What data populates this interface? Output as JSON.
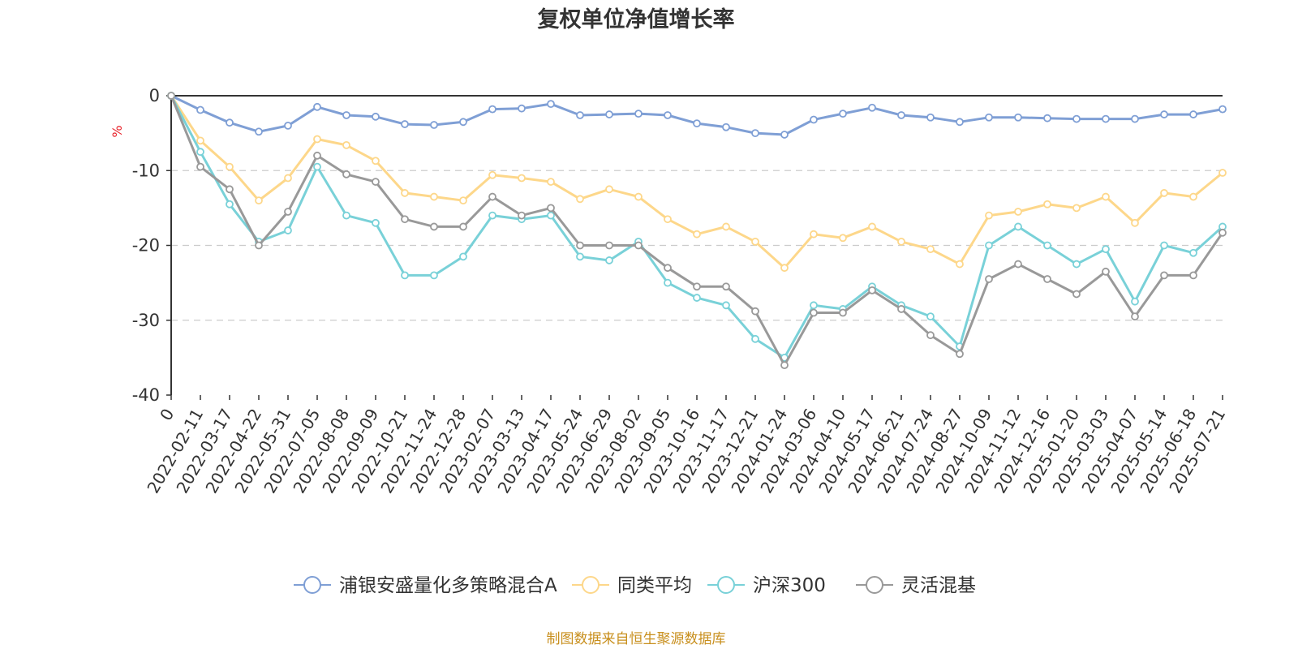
{
  "chart_data": {
    "type": "line",
    "title": "复权单位净值增长率",
    "ylabel": "%",
    "ylim": [
      -40,
      0
    ],
    "yticks": [
      0,
      -10,
      -20,
      -30,
      -40
    ],
    "grid": true,
    "legend_position": "bottom",
    "x": [
      "0",
      "2022-02-11",
      "2022-03-17",
      "2022-04-22",
      "2022-05-31",
      "2022-07-05",
      "2022-08-08",
      "2022-09-09",
      "2022-10-21",
      "2022-11-24",
      "2022-12-28",
      "2023-02-07",
      "2023-03-13",
      "2023-04-17",
      "2023-05-24",
      "2023-06-29",
      "2023-08-02",
      "2023-09-05",
      "2023-10-16",
      "2023-11-17",
      "2023-12-21",
      "2024-01-24",
      "2024-03-06",
      "2024-04-10",
      "2024-05-17",
      "2024-06-21",
      "2024-07-24",
      "2024-08-27",
      "2024-10-09",
      "2024-11-12",
      "2024-12-16",
      "2025-01-20",
      "2025-03-03",
      "2025-04-07",
      "2025-05-14",
      "2025-06-18",
      "2025-07-21"
    ],
    "series": [
      {
        "name": "浦银安盛量化多策略混合A",
        "color": "#7f9fd5",
        "values": [
          0,
          -1.9,
          -3.6,
          -4.8,
          -4.0,
          -1.5,
          -2.6,
          -2.8,
          -3.8,
          -3.9,
          -3.5,
          -1.8,
          -1.7,
          -1.1,
          -2.6,
          -2.5,
          -2.4,
          -2.6,
          -3.7,
          -4.2,
          -5.0,
          -5.2,
          -3.2,
          -2.4,
          -1.6,
          -2.6,
          -2.9,
          -3.5,
          -2.9,
          -2.9,
          -3.0,
          -3.1,
          -3.1,
          -3.1,
          -2.5,
          -2.5,
          -1.8
        ]
      },
      {
        "name": "同类平均",
        "color": "#fdd78a",
        "values": [
          0,
          -6.0,
          -9.5,
          -14.0,
          -11.0,
          -5.8,
          -6.6,
          -8.7,
          -13.0,
          -13.5,
          -14.0,
          -10.6,
          -11.0,
          -11.5,
          -13.8,
          -12.5,
          -13.5,
          -16.5,
          -18.5,
          -17.5,
          -19.5,
          -23.0,
          -18.5,
          -19.0,
          -17.5,
          -19.5,
          -20.5,
          -22.5,
          -16.0,
          -15.5,
          -14.5,
          -15.0,
          -13.5,
          -17.0,
          -13.0,
          -13.5,
          -10.3
        ]
      },
      {
        "name": "沪深300",
        "color": "#79d1d8",
        "values": [
          0,
          -7.5,
          -14.5,
          -19.5,
          -18.0,
          -9.5,
          -16.0,
          -17.0,
          -24.0,
          -24.0,
          -21.5,
          -16.0,
          -16.5,
          -16.0,
          -21.5,
          -22.0,
          -19.5,
          -25.0,
          -27.0,
          -28.0,
          -32.5,
          -35.0,
          -28.0,
          -28.5,
          -25.5,
          -28.0,
          -29.5,
          -33.5,
          -20.0,
          -17.5,
          -20.0,
          -22.5,
          -20.5,
          -27.5,
          -20.0,
          -21.0,
          -17.5
        ]
      },
      {
        "name": "灵活混基",
        "color": "#999999",
        "values": [
          0,
          -9.5,
          -12.5,
          -20.0,
          -15.5,
          -8.0,
          -10.5,
          -11.5,
          -16.5,
          -17.5,
          -17.5,
          -13.5,
          -16.0,
          -15.0,
          -20.0,
          -20.0,
          -20.0,
          -23.0,
          -25.5,
          -25.5,
          -28.8,
          -36.0,
          -29.0,
          -29.0,
          -26.0,
          -28.5,
          -32.0,
          -34.5,
          -24.5,
          -22.5,
          -24.5,
          -26.5,
          -23.5,
          -29.5,
          -24.0,
          -24.0,
          -18.3
        ]
      }
    ]
  },
  "source_note": "制图数据来自恒生聚源数据库"
}
